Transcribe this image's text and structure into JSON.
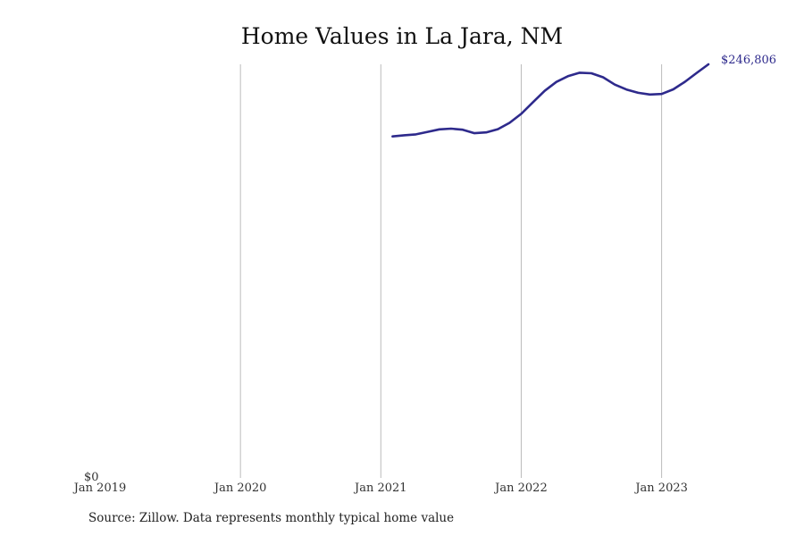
{
  "chart_data": {
    "type": "line",
    "title": "Home Values in La Jara, NM",
    "source": "Source: Zillow. Data represents monthly typical home value",
    "y_axis_label_min": "$0",
    "ylim": [
      0,
      246806
    ],
    "xlim": [
      "2019-01",
      "2023-05"
    ],
    "x_ticks": [
      {
        "date": "2019-01",
        "label": "Jan 2019"
      },
      {
        "date": "2020-01",
        "label": "Jan 2020"
      },
      {
        "date": "2021-01",
        "label": "Jan 2021"
      },
      {
        "date": "2022-01",
        "label": "Jan 2022"
      },
      {
        "date": "2023-01",
        "label": "Jan 2023"
      }
    ],
    "grid": "vertical",
    "line_color": "#2e2a8c",
    "end_label": "$246,806",
    "series": [
      {
        "x": [
          "2021-02",
          "2021-03",
          "2021-04",
          "2021-05",
          "2021-06",
          "2021-07",
          "2021-08",
          "2021-09",
          "2021-10",
          "2021-11",
          "2021-12",
          "2022-01",
          "2022-02",
          "2022-03",
          "2022-04",
          "2022-05",
          "2022-06",
          "2022-07",
          "2022-08",
          "2022-09",
          "2022-10",
          "2022-11",
          "2022-12",
          "2023-01",
          "2023-02",
          "2023-03",
          "2023-04",
          "2023-05"
        ],
        "y": [
          203800,
          204500,
          205000,
          206500,
          208000,
          208400,
          207800,
          205700,
          206200,
          208100,
          211900,
          217300,
          224200,
          231000,
          236300,
          239700,
          241800,
          241500,
          239100,
          234700,
          231800,
          229800,
          228800,
          229100,
          231900,
          236400,
          241700,
          246806
        ]
      }
    ]
  }
}
